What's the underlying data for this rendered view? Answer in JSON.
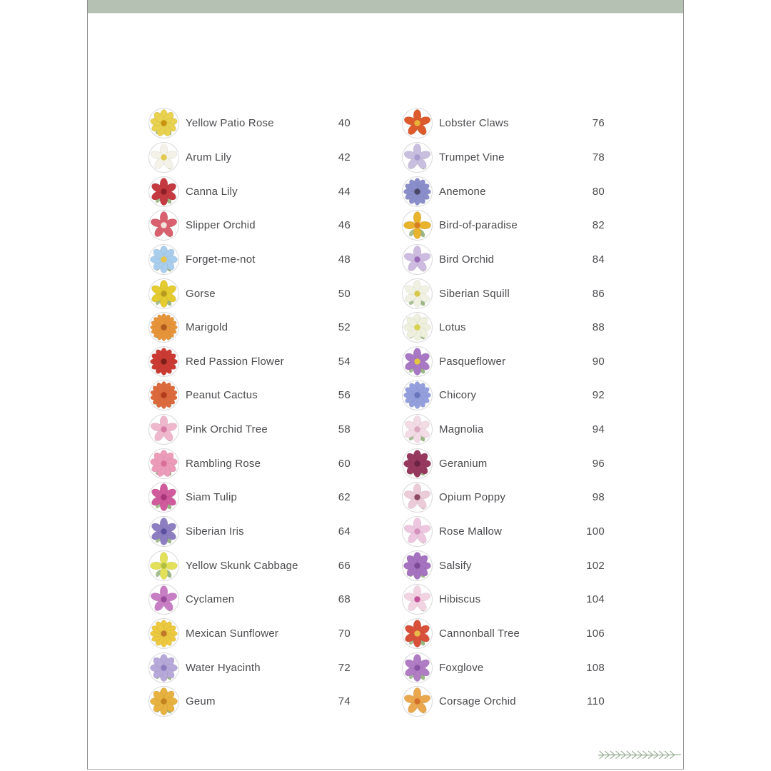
{
  "page": {
    "background": "#ffffff",
    "border_color": "#8f8f8f",
    "header_bar_color": "#b5c1b2"
  },
  "toc": {
    "text_color": "#4b4b4f",
    "thumbnail": {
      "ring_color": "#d9d9d9",
      "leaf_color": "#8fae77"
    },
    "columns": [
      {
        "side": "left",
        "entries": [
          {
            "name": "Yellow Patio Rose",
            "page": "40",
            "petals": 9,
            "petal_color": "#e9d24f",
            "center_color": "#c9930f"
          },
          {
            "name": "Arum Lily",
            "page": "42",
            "petals": 5,
            "petal_color": "#f4f2e8",
            "center_color": "#e2c84e"
          },
          {
            "name": "Canna Lily",
            "page": "44",
            "petals": 6,
            "petal_color": "#c43a40",
            "center_color": "#8e1f27"
          },
          {
            "name": "Slipper Orchid",
            "page": "46",
            "petals": 5,
            "petal_color": "#d9606f",
            "center_color": "#f3e3dd"
          },
          {
            "name": "Forget-me-not",
            "page": "48",
            "petals": 8,
            "petal_color": "#a9cdec",
            "center_color": "#e6c64a"
          },
          {
            "name": "Gorse",
            "page": "50",
            "petals": 6,
            "petal_color": "#e4cb2f",
            "center_color": "#b89a1e"
          },
          {
            "name": "Marigold",
            "page": "52",
            "petals": 16,
            "petal_color": "#e8953a",
            "center_color": "#b05a1d"
          },
          {
            "name": "Red Passion Flower",
            "page": "54",
            "petals": 12,
            "petal_color": "#cc3b33",
            "center_color": "#7e1f1a"
          },
          {
            "name": "Peanut Cactus",
            "page": "56",
            "petals": 14,
            "petal_color": "#dd6a3c",
            "center_color": "#b33c1d"
          },
          {
            "name": "Pink Orchid Tree",
            "page": "58",
            "petals": 5,
            "petal_color": "#efb7cc",
            "center_color": "#d77ba4"
          },
          {
            "name": "Rambling Rose",
            "page": "60",
            "petals": 9,
            "petal_color": "#ec9cb9",
            "center_color": "#d96f96"
          },
          {
            "name": "Siam Tulip",
            "page": "62",
            "petals": 6,
            "petal_color": "#cf5a9c",
            "center_color": "#a83578"
          },
          {
            "name": "Siberian Iris",
            "page": "64",
            "petals": 6,
            "petal_color": "#8d7ec2",
            "center_color": "#5c4f9e"
          },
          {
            "name": "Yellow Skunk Cabbage",
            "page": "66",
            "petals": 4,
            "petal_color": "#e3e05a",
            "center_color": "#b0bf3d"
          },
          {
            "name": "Cyclamen",
            "page": "68",
            "petals": 5,
            "petal_color": "#c77ec4",
            "center_color": "#994a9b"
          },
          {
            "name": "Mexican Sunflower",
            "page": "70",
            "petals": 12,
            "petal_color": "#ecc93f",
            "center_color": "#c07828"
          },
          {
            "name": "Water Hyacinth",
            "page": "72",
            "petals": 8,
            "petal_color": "#b6a8d8",
            "center_color": "#8d7bc0"
          },
          {
            "name": "Geum",
            "page": "74",
            "petals": 8,
            "petal_color": "#e7b23f",
            "center_color": "#c3831f"
          }
        ]
      },
      {
        "side": "right",
        "entries": [
          {
            "name": "Lobster Claws",
            "page": "76",
            "petals": 5,
            "petal_color": "#dd5a2c",
            "center_color": "#e9b33a"
          },
          {
            "name": "Trumpet Vine",
            "page": "78",
            "petals": 5,
            "petal_color": "#c8bede",
            "center_color": "#a99bd0"
          },
          {
            "name": "Anemone",
            "page": "80",
            "petals": 12,
            "petal_color": "#8a8ecb",
            "center_color": "#4a4668"
          },
          {
            "name": "Bird-of-paradise",
            "page": "82",
            "petals": 4,
            "petal_color": "#e8b42e",
            "center_color": "#d97f23"
          },
          {
            "name": "Bird Orchid",
            "page": "84",
            "petals": 5,
            "petal_color": "#cdbce0",
            "center_color": "#9b6cb8"
          },
          {
            "name": "Siberian Squill",
            "page": "86",
            "petals": 6,
            "petal_color": "#f0f1e2",
            "center_color": "#d8c84e"
          },
          {
            "name": "Lotus",
            "page": "88",
            "petals": 8,
            "petal_color": "#eef0dd",
            "center_color": "#d8d24f"
          },
          {
            "name": "Pasqueflower",
            "page": "90",
            "petals": 6,
            "petal_color": "#a878c4",
            "center_color": "#e3c53f"
          },
          {
            "name": "Chicory",
            "page": "92",
            "petals": 12,
            "petal_color": "#94a0dd",
            "center_color": "#6a76bb"
          },
          {
            "name": "Magnolia",
            "page": "94",
            "petals": 6,
            "petal_color": "#f2dbe4",
            "center_color": "#dba8c0"
          },
          {
            "name": "Geranium",
            "page": "96",
            "petals": 8,
            "petal_color": "#97385f",
            "center_color": "#6c2244"
          },
          {
            "name": "Opium Poppy",
            "page": "98",
            "petals": 5,
            "petal_color": "#eccbd8",
            "center_color": "#8e4a63"
          },
          {
            "name": "Rose Mallow",
            "page": "100",
            "petals": 5,
            "petal_color": "#edc6df",
            "center_color": "#d391bb"
          },
          {
            "name": "Salsify",
            "page": "102",
            "petals": 8,
            "petal_color": "#a573c0",
            "center_color": "#7a4a96"
          },
          {
            "name": "Hibiscus",
            "page": "104",
            "petals": 5,
            "petal_color": "#f2d3e2",
            "center_color": "#c4549a"
          },
          {
            "name": "Cannonball Tree",
            "page": "106",
            "petals": 6,
            "petal_color": "#d8503a",
            "center_color": "#e8bb4a"
          },
          {
            "name": "Foxglove",
            "page": "108",
            "petals": 6,
            "petal_color": "#b07cc4",
            "center_color": "#8a54a4"
          },
          {
            "name": "Corsage Orchid",
            "page": "110",
            "petals": 5,
            "petal_color": "#eaa84e",
            "center_color": "#d4702a"
          }
        ]
      }
    ]
  },
  "footer": {
    "decoration": "vine-sprig",
    "color": "#9cb298"
  }
}
